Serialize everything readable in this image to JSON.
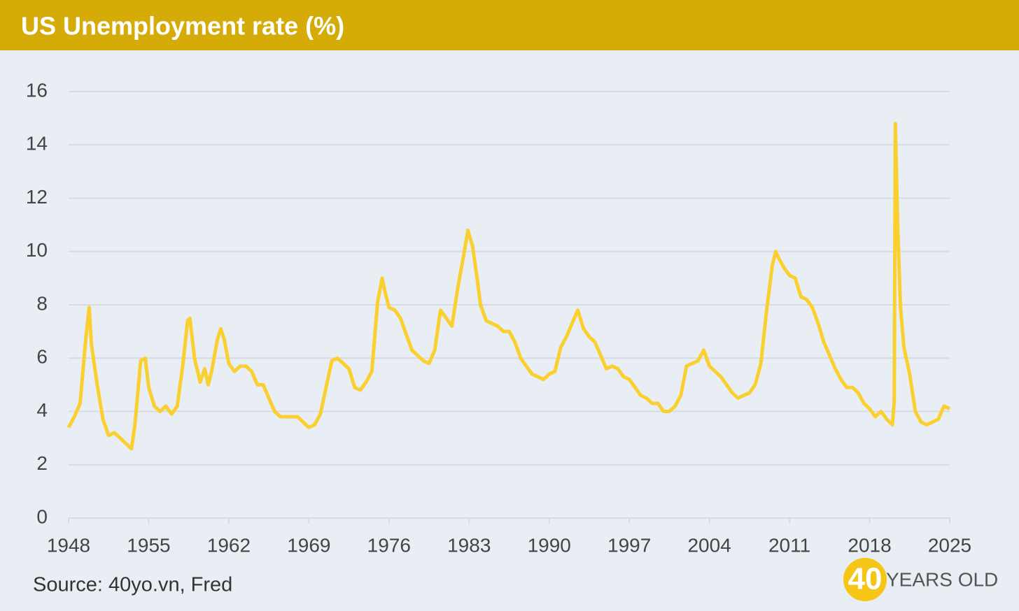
{
  "chart_data": {
    "type": "line",
    "title": "US Unemployment rate (%)",
    "source": "Source: 40yo.vn, Fred",
    "logo": {
      "number": "40",
      "text": "YEARS OLD"
    },
    "xlim": [
      1948,
      2025
    ],
    "xticks": [
      1948,
      1955,
      1962,
      1969,
      1976,
      1983,
      1990,
      1997,
      2004,
      2011,
      2018,
      2025
    ],
    "ylim": [
      0,
      16
    ],
    "yticks": [
      0,
      2,
      4,
      6,
      8,
      10,
      12,
      14,
      16
    ],
    "grid": true,
    "x": [
      1948.0,
      1948.5,
      1949.0,
      1949.5,
      1949.8,
      1950.0,
      1950.5,
      1951.0,
      1951.5,
      1952.0,
      1952.5,
      1953.0,
      1953.5,
      1953.8,
      1954.3,
      1954.7,
      1955.0,
      1955.5,
      1956.0,
      1956.5,
      1957.0,
      1957.5,
      1958.0,
      1958.4,
      1958.6,
      1959.0,
      1959.5,
      1959.9,
      1960.2,
      1960.5,
      1961.0,
      1961.3,
      1961.6,
      1962.0,
      1962.5,
      1963.0,
      1963.5,
      1964.0,
      1964.5,
      1965.0,
      1965.5,
      1966.0,
      1966.5,
      1967.0,
      1967.5,
      1968.0,
      1968.5,
      1969.0,
      1969.5,
      1970.0,
      1970.5,
      1971.0,
      1971.5,
      1972.0,
      1972.5,
      1973.0,
      1973.5,
      1974.0,
      1974.5,
      1975.0,
      1975.4,
      1975.7,
      1976.0,
      1976.5,
      1977.0,
      1977.5,
      1978.0,
      1978.5,
      1979.0,
      1979.5,
      1980.0,
      1980.5,
      1981.0,
      1981.5,
      1982.0,
      1982.5,
      1982.9,
      1983.3,
      1983.7,
      1984.0,
      1984.5,
      1985.0,
      1985.5,
      1986.0,
      1986.5,
      1987.0,
      1987.5,
      1988.0,
      1988.5,
      1989.0,
      1989.5,
      1990.0,
      1990.5,
      1991.0,
      1991.5,
      1992.0,
      1992.5,
      1993.0,
      1993.5,
      1994.0,
      1994.5,
      1995.0,
      1995.5,
      1996.0,
      1996.5,
      1997.0,
      1997.5,
      1998.0,
      1998.5,
      1999.0,
      1999.5,
      2000.0,
      2000.5,
      2001.0,
      2001.5,
      2002.0,
      2002.5,
      2003.0,
      2003.5,
      2004.0,
      2004.5,
      2005.0,
      2005.5,
      2006.0,
      2006.5,
      2007.0,
      2007.5,
      2008.0,
      2008.5,
      2009.0,
      2009.5,
      2009.8,
      2010.0,
      2010.5,
      2011.0,
      2011.5,
      2012.0,
      2012.5,
      2013.0,
      2013.5,
      2014.0,
      2014.5,
      2015.0,
      2015.5,
      2016.0,
      2016.5,
      2017.0,
      2017.5,
      2018.0,
      2018.5,
      2019.0,
      2019.5,
      2020.0,
      2020.15,
      2020.25,
      2020.45,
      2020.7,
      2021.0,
      2021.5,
      2022.0,
      2022.5,
      2023.0,
      2023.5,
      2024.0,
      2024.5,
      2025.0
    ],
    "series": [
      {
        "name": "Unemployment rate",
        "color": "#f9d030",
        "values": [
          3.4,
          3.8,
          4.3,
          6.7,
          7.9,
          6.5,
          5.0,
          3.7,
          3.1,
          3.2,
          3.0,
          2.8,
          2.6,
          3.5,
          5.9,
          6.0,
          4.9,
          4.2,
          4.0,
          4.2,
          3.9,
          4.2,
          5.8,
          7.4,
          7.5,
          6.0,
          5.1,
          5.6,
          5.0,
          5.5,
          6.7,
          7.1,
          6.7,
          5.8,
          5.5,
          5.7,
          5.7,
          5.5,
          5.0,
          5.0,
          4.5,
          4.0,
          3.8,
          3.8,
          3.8,
          3.8,
          3.6,
          3.4,
          3.5,
          3.9,
          4.9,
          5.9,
          6.0,
          5.8,
          5.6,
          4.9,
          4.8,
          5.1,
          5.5,
          8.1,
          9.0,
          8.4,
          7.9,
          7.8,
          7.5,
          6.9,
          6.3,
          6.1,
          5.9,
          5.8,
          6.3,
          7.8,
          7.5,
          7.2,
          8.6,
          9.8,
          10.8,
          10.2,
          9.0,
          8.0,
          7.4,
          7.3,
          7.2,
          7.0,
          7.0,
          6.6,
          6.0,
          5.7,
          5.4,
          5.3,
          5.2,
          5.4,
          5.5,
          6.4,
          6.8,
          7.3,
          7.8,
          7.1,
          6.8,
          6.6,
          6.1,
          5.6,
          5.7,
          5.6,
          5.3,
          5.2,
          4.9,
          4.6,
          4.5,
          4.3,
          4.3,
          4.0,
          4.0,
          4.2,
          4.6,
          5.7,
          5.8,
          5.9,
          6.3,
          5.7,
          5.5,
          5.3,
          5.0,
          4.7,
          4.5,
          4.6,
          4.7,
          5.0,
          5.8,
          7.8,
          9.5,
          10.0,
          9.8,
          9.4,
          9.1,
          9.0,
          8.3,
          8.2,
          7.9,
          7.3,
          6.6,
          6.1,
          5.6,
          5.2,
          4.9,
          4.9,
          4.7,
          4.3,
          4.1,
          3.8,
          4.0,
          3.7,
          3.5,
          4.4,
          14.8,
          11.0,
          7.9,
          6.4,
          5.4,
          4.0,
          3.6,
          3.5,
          3.6,
          3.7,
          4.2,
          4.1
        ]
      }
    ]
  }
}
